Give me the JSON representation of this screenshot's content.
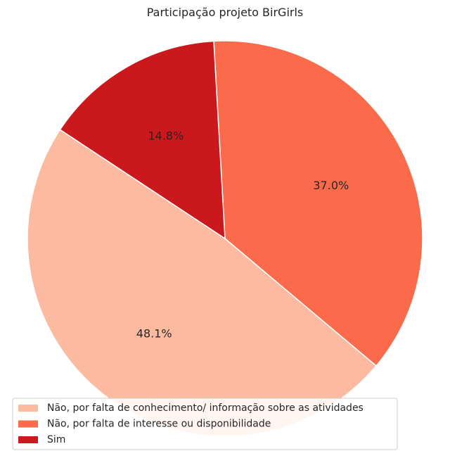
{
  "chart_data": {
    "type": "pie",
    "title": "Participação projeto BirGirls",
    "categories": [
      "Não, por falta de conhecimento/ informação sobre as atividades",
      "Não, por falta de interesse ou disponibilidade",
      "Sim"
    ],
    "values": [
      48.1,
      37.0,
      14.8
    ],
    "labels": [
      "48.1%",
      "37.0%",
      "14.8%"
    ],
    "colors": [
      "#fcbba1",
      "#fb6a4a",
      "#cb181d"
    ],
    "legend_position": "bottom-left"
  }
}
